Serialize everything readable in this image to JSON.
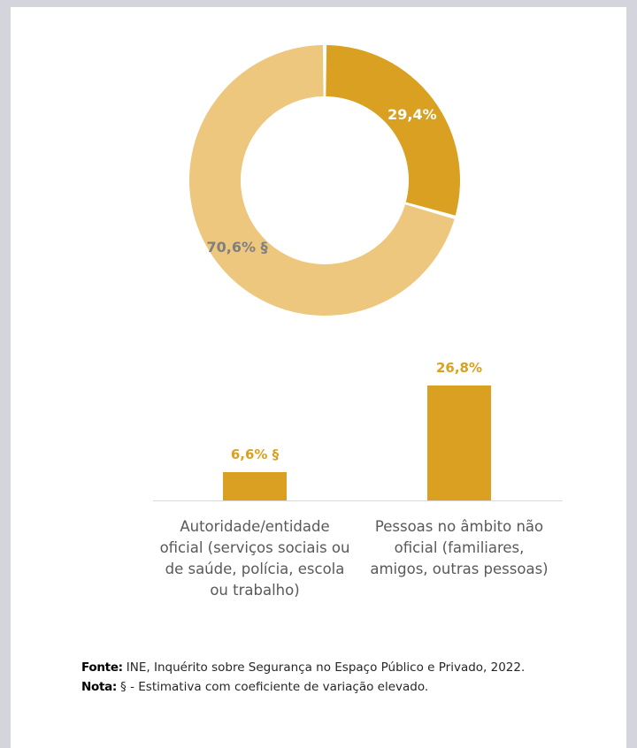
{
  "chart_data": [
    {
      "type": "pie",
      "donut": true,
      "slices": [
        {
          "label": "29,4%",
          "value": 29.4,
          "color": "#DAA021",
          "label_color": "#ffffff"
        },
        {
          "label": "70,6% §",
          "value": 70.6,
          "color": "#EDC77D",
          "label_color": "#7F7F7F"
        }
      ]
    },
    {
      "type": "bar",
      "categories": [
        "Autoridade/entidade\noficial (serviços sociais ou\nde saúde, polícia, escola\nou trabalho)",
        "Pessoas no âmbito não\noficial (familiares,\namigos, outras pessoas)"
      ],
      "values": [
        6.6,
        26.8
      ],
      "data_labels": [
        "6,6% §",
        "26,8%"
      ],
      "color": "#DAA021",
      "label_color": "#DAA021",
      "ylim": [
        0,
        30
      ],
      "grid": false
    }
  ],
  "notes": {
    "source_key": "Fonte:",
    "source_text": "INE, Inquérito sobre Segurança no Espaço Público e Privado, 2022.",
    "note_key": "Nota:",
    "note_text": "§ - Estimativa com coeficiente de variação elevado."
  }
}
